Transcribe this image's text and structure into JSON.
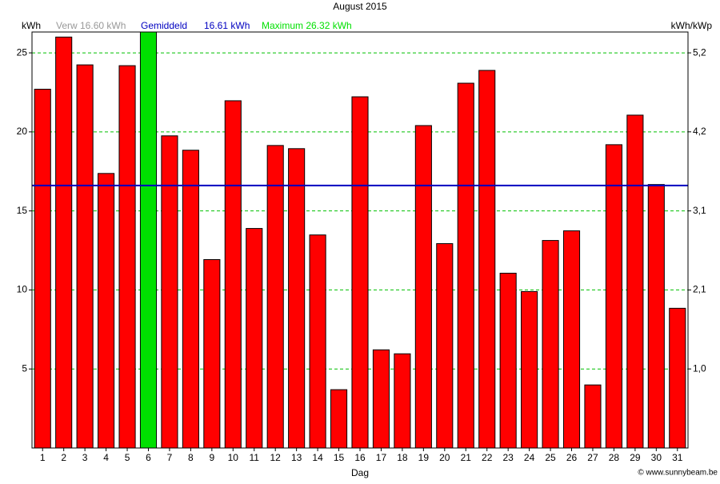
{
  "chart_data": {
    "type": "bar",
    "title": "August 2015",
    "y_label": "kWh",
    "y2_label": "kWh/kWp",
    "x_label": "Dag",
    "header": {
      "expected": "Verw 16.60 kWh",
      "average_name": "Gemiddeld",
      "average_text": "16.61 kWh",
      "maximum": "Maximum 26.32 kWh"
    },
    "footer": "© www.sunnybeam.be",
    "categories": [
      "1",
      "2",
      "3",
      "4",
      "5",
      "6",
      "7",
      "8",
      "9",
      "10",
      "11",
      "12",
      "13",
      "14",
      "15",
      "16",
      "17",
      "18",
      "19",
      "20",
      "21",
      "22",
      "23",
      "24",
      "25",
      "26",
      "27",
      "28",
      "29",
      "30",
      "31"
    ],
    "values": [
      22.7,
      26.0,
      24.24,
      17.37,
      24.19,
      26.32,
      19.75,
      18.84,
      11.92,
      21.97,
      13.89,
      19.14,
      18.94,
      13.48,
      3.69,
      22.22,
      6.21,
      5.96,
      20.4,
      12.93,
      23.08,
      23.89,
      11.06,
      9.9,
      13.13,
      13.74,
      3.99,
      19.19,
      21.06,
      16.67,
      8.84
    ],
    "colors": [
      "#ff0000",
      "#ff0000",
      "#ff0000",
      "#ff0000",
      "#ff0000",
      "#00e000",
      "#ff0000",
      "#ff0000",
      "#ff0000",
      "#ff0000",
      "#ff0000",
      "#ff0000",
      "#ff0000",
      "#ff0000",
      "#ff0000",
      "#ff0000",
      "#ff0000",
      "#ff0000",
      "#ff0000",
      "#ff0000",
      "#ff0000",
      "#ff0000",
      "#ff0000",
      "#ff0000",
      "#ff0000",
      "#ff0000",
      "#ff0000",
      "#ff0000",
      "#ff0000",
      "#ff0000",
      "#ff0000"
    ],
    "average": 16.61,
    "average_color": "#0000c0",
    "ylim": [
      0,
      26.32
    ],
    "yticks": [
      5,
      10,
      15,
      20,
      25
    ],
    "y2lim": [
      0,
      5.483
    ],
    "y2ticks": [
      {
        "value": 1.042,
        "label": "1,0"
      },
      {
        "value": 2.083,
        "label": "2,1"
      },
      {
        "value": 3.125,
        "label": "3,1"
      },
      {
        "value": 4.167,
        "label": "4,2"
      },
      {
        "value": 5.208,
        "label": "5,2"
      }
    ],
    "grid": true,
    "grid_color": "#00c000"
  }
}
